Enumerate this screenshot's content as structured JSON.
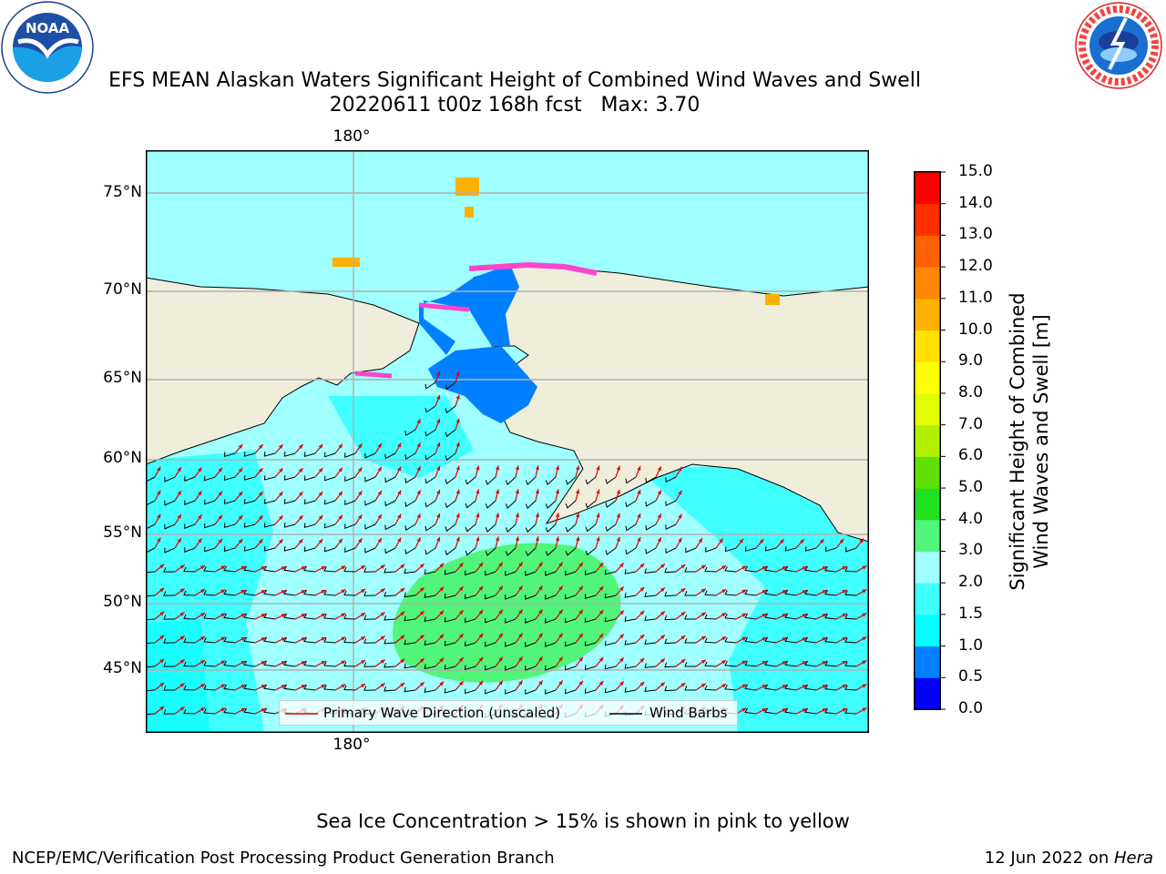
{
  "header": {
    "title_line1": "EFS MEAN Alaskan Waters Significant Height of Combined Wind Waves and Swell",
    "title_line2": "20220611 t00z 168h fcst   Max: 3.70"
  },
  "logos": {
    "left": {
      "text": "NOAA",
      "ring_top": "NATIONAL OCEANIC AND ATMOSPHERIC ADMINISTRATION",
      "ring_bottom": "U.S. DEPARTMENT OF COMMERCE"
    },
    "right": {
      "ring": "NATIONAL WEATHER SERVICE"
    }
  },
  "map": {
    "lat_labels": [
      "75°N",
      "70°N",
      "65°N",
      "60°N",
      "55°N",
      "50°N",
      "45°N"
    ],
    "lon_label_top": "180°",
    "lon_label_bottom": "180°",
    "colors": {
      "land": "#efeedb",
      "ice_top": "#ff44cc",
      "ice_mid": "#ffb000"
    }
  },
  "legend": {
    "primary_wave_direction": "Primary Wave Direction (unscaled)",
    "wind_barbs": "Wind Barbs"
  },
  "colorbar": {
    "title_line1": "Significant Height of Combined",
    "title_line2": "Wind Waves and Swell [m]",
    "ticks": [
      "0.0",
      "0.5",
      "1.0",
      "1.5",
      "2.0",
      "3.0",
      "4.0",
      "5.0",
      "6.0",
      "7.0",
      "8.0",
      "9.0",
      "10.0",
      "11.0",
      "12.0",
      "13.0",
      "14.0",
      "15.0"
    ],
    "colors": [
      "#0000ff",
      "#0080ff",
      "#00ffff",
      "#40ffff",
      "#a0ffff",
      "#50f57a",
      "#20e020",
      "#60e000",
      "#b0f000",
      "#e0ff00",
      "#ffff00",
      "#ffe000",
      "#ffb000",
      "#ff8800",
      "#ff6000",
      "#ff3000",
      "#ff0000"
    ]
  },
  "footer": {
    "note": "Sea Ice Concentration > 15% is shown in pink to yellow",
    "left": "NCEP/EMC/Verification Post Processing Product Generation Branch",
    "right_date": "12 Jun 2022 on ",
    "right_host": "Hera"
  }
}
